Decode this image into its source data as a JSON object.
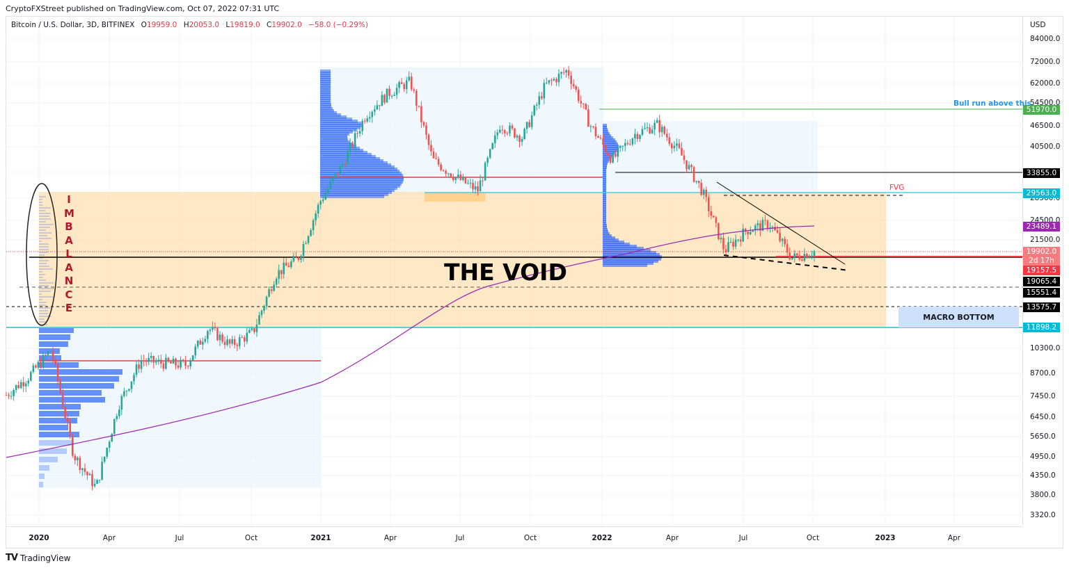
{
  "header": {
    "published": "CryptoFXStreet published on TradingView.com, Oct 07, 2022 07:31 UTC",
    "symbol": "Bitcoin / U.S. Dollar, 3D, BITFINEX",
    "o_label": "O",
    "o_value": "19959.0",
    "h_label": "H",
    "h_value": "20053.0",
    "l_label": "L",
    "l_value": "19819.0",
    "c_label": "C",
    "c_value": "19902.0",
    "change": "−58.0 (−0.29%)"
  },
  "brand": {
    "name": "TradingView"
  },
  "annotations": {
    "void": "THE VOID",
    "imbalance": [
      "I",
      "M",
      "B",
      "A",
      "L",
      "A",
      "N",
      "C",
      "E"
    ],
    "fvg": "FVG",
    "bull": "Bull run above this",
    "macro": "MACRO BOTTOM"
  },
  "colors": {
    "up": "#26a69a",
    "down": "#ef5350",
    "ma": "#9c27b0",
    "void_zone": "#ffe0b2",
    "vp_bar": "#2962ff",
    "vp_zone": "#e3f2fd"
  },
  "chart_data": {
    "type": "candlestick",
    "title": "Bitcoin / U.S. Dollar, 3D, BITFINEX",
    "ylabel": "USD",
    "yscale": "log",
    "ylim": [
      3000,
      90000
    ],
    "yticks": [
      "84000.0",
      "72000.0",
      "62000.0",
      "54500.0",
      "46500.0",
      "40500.0",
      "35000.0",
      "28500.0",
      "24500.0",
      "21500.0",
      "10300.0",
      "8700.0",
      "7450.0",
      "6450.0",
      "5650.0",
      "4950.0",
      "4350.0",
      "3800.0",
      "3320.0"
    ],
    "xticks": [
      {
        "label": "2020",
        "bold": true
      },
      {
        "label": "Apr"
      },
      {
        "label": "Jul"
      },
      {
        "label": "Oct"
      },
      {
        "label": "2021",
        "bold": true
      },
      {
        "label": "Apr"
      },
      {
        "label": "Jul"
      },
      {
        "label": "Oct"
      },
      {
        "label": "2022",
        "bold": true
      },
      {
        "label": "Apr"
      },
      {
        "label": "Jul"
      },
      {
        "label": "Oct"
      },
      {
        "label": "2023",
        "bold": true
      },
      {
        "label": "Apr"
      }
    ],
    "ohlc_last": {
      "open": 19959.0,
      "high": 20053.0,
      "low": 19819.0,
      "close": 19902.0,
      "change": -58.0,
      "change_pct": -0.29
    },
    "price_levels": [
      {
        "label": "51970.0",
        "color": "#4caf50",
        "name": "bull-run-level"
      },
      {
        "label": "33855.0",
        "color": "#000000",
        "name": "resistance"
      },
      {
        "label": "29563.0",
        "color": "#00bcd4",
        "name": "fvg-top"
      },
      {
        "label": "23489.1",
        "color": "#9c27b0",
        "name": "moving-average"
      },
      {
        "label": "19902.0",
        "color": "#f23645",
        "name": "last-price",
        "sub": "2d 17h"
      },
      {
        "label": "19157.5",
        "color": "#f23645",
        "name": "poc-level"
      },
      {
        "label": "19065.4",
        "color": "#000000",
        "name": "support"
      },
      {
        "label": "15551.4",
        "color": "#000000",
        "name": "dashed-support-1"
      },
      {
        "label": "13575.7",
        "color": "#000000",
        "name": "dashed-support-2"
      },
      {
        "label": "11898.2",
        "color": "#00bcd4",
        "name": "void-bottom"
      }
    ],
    "price_path": [
      [
        "2019-11",
        7500
      ],
      [
        "2020-01",
        8500
      ],
      [
        "2020-02",
        10200
      ],
      [
        "2020-03",
        5000
      ],
      [
        "2020-03b",
        4000
      ],
      [
        "2020-04",
        7000
      ],
      [
        "2020-05",
        9500
      ],
      [
        "2020-06",
        9300
      ],
      [
        "2020-07",
        9200
      ],
      [
        "2020-08",
        11800
      ],
      [
        "2020-09",
        10500
      ],
      [
        "2020-10",
        11500
      ],
      [
        "2020-11",
        17000
      ],
      [
        "2020-12",
        19000
      ],
      [
        "2020-12b",
        28000
      ],
      [
        "2021-01",
        36000
      ],
      [
        "2021-02",
        50000
      ],
      [
        "2021-03",
        58000
      ],
      [
        "2021-04",
        63000
      ],
      [
        "2021-05",
        37000
      ],
      [
        "2021-06",
        33000
      ],
      [
        "2021-07",
        30000
      ],
      [
        "2021-08",
        47000
      ],
      [
        "2021-09",
        43000
      ],
      [
        "2021-10",
        61000
      ],
      [
        "2021-11",
        68000
      ],
      [
        "2021-12",
        47000
      ],
      [
        "2022-01",
        37000
      ],
      [
        "2022-02",
        44000
      ],
      [
        "2022-03",
        47000
      ],
      [
        "2022-04",
        39000
      ],
      [
        "2022-05",
        30000
      ],
      [
        "2022-06",
        20000
      ],
      [
        "2022-07",
        23000
      ],
      [
        "2022-08",
        24000
      ],
      [
        "2022-09",
        19000
      ],
      [
        "2022-10",
        19902
      ]
    ]
  }
}
